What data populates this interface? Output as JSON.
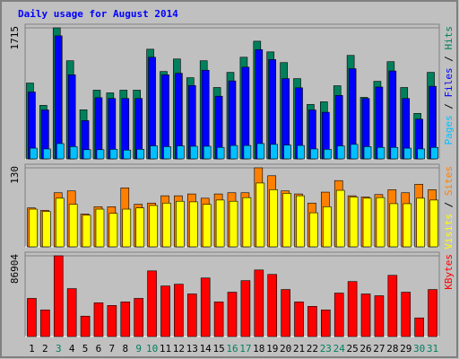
{
  "chart_data": [
    {
      "type": "bar",
      "title": "Daily usage for August 2014",
      "legend_separator": " / ",
      "ylim": [
        0,
        1715
      ],
      "yticks": [
        1715
      ],
      "series": [
        {
          "name": "Hits",
          "color": "#00805c",
          "values": [
            992,
            700,
            1715,
            1284,
            642,
            899,
            864,
            899,
            899,
            1435,
            1143,
            1307,
            1062,
            1284,
            934,
            1132,
            1330,
            1540,
            1400,
            1260,
            1050,
            712,
            747,
            957,
            1354,
            805,
            1015,
            1272,
            934,
            595,
            1132
          ]
        },
        {
          "name": "Files",
          "color": "#0000ff",
          "values": [
            875,
            640,
            1610,
            1100,
            500,
            800,
            790,
            790,
            790,
            1330,
            1100,
            1120,
            960,
            1160,
            820,
            1020,
            1200,
            1430,
            1300,
            1050,
            930,
            640,
            610,
            830,
            1180,
            790,
            940,
            1150,
            790,
            520,
            950
          ]
        },
        {
          "name": "Pages",
          "color": "#00c0ff",
          "values": [
            140,
            130,
            200,
            160,
            120,
            120,
            125,
            115,
            125,
            170,
            160,
            170,
            165,
            165,
            150,
            175,
            175,
            200,
            190,
            180,
            175,
            130,
            125,
            170,
            190,
            160,
            150,
            150,
            140,
            130,
            150
          ]
        }
      ]
    },
    {
      "type": "bar",
      "legend_separator": " / ",
      "ylim": [
        0,
        130
      ],
      "yticks": [
        130
      ],
      "series": [
        {
          "name": "Sites",
          "color": "#ff8000",
          "values": [
            64,
            60,
            89,
            92,
            54,
            66,
            66,
            97,
            70,
            72,
            84,
            84,
            87,
            80,
            87,
            89,
            89,
            130,
            117,
            92,
            87,
            72,
            90,
            109,
            84,
            82,
            86,
            94,
            89,
            103,
            94
          ]
        },
        {
          "name": "Visits",
          "color": "#ffff00",
          "values": [
            62,
            58,
            80,
            70,
            52,
            62,
            55,
            62,
            64,
            68,
            72,
            75,
            74,
            70,
            77,
            75,
            81,
            105,
            94,
            88,
            84,
            56,
            66,
            93,
            82,
            80,
            81,
            71,
            71,
            80,
            77
          ]
        }
      ]
    },
    {
      "type": "bar",
      "ylim": [
        0,
        86904
      ],
      "yticks": [
        86904
      ],
      "categories": [
        "1",
        "2",
        "3",
        "4",
        "5",
        "6",
        "7",
        "8",
        "9",
        "10",
        "11",
        "12",
        "13",
        "14",
        "15",
        "16",
        "17",
        "18",
        "19",
        "20",
        "21",
        "22",
        "23",
        "24",
        "25",
        "26",
        "27",
        "28",
        "29",
        "30",
        "31"
      ],
      "category_colors": [
        "#000000",
        "#000000",
        "#00805c",
        "#000000",
        "#000000",
        "#000000",
        "#000000",
        "#000000",
        "#00805c",
        "#00805c",
        "#000000",
        "#000000",
        "#000000",
        "#000000",
        "#000000",
        "#00805c",
        "#00805c",
        "#000000",
        "#000000",
        "#000000",
        "#000000",
        "#000000",
        "#00805c",
        "#00805c",
        "#000000",
        "#000000",
        "#000000",
        "#000000",
        "#000000",
        "#00805c",
        "#00805c"
      ],
      "series": [
        {
          "name": "KBytes",
          "color": "#ff0000",
          "values": [
            41065,
            28650,
            86904,
            51570,
            21965,
            36290,
            33425,
            37245,
            41065,
            70670,
            54435,
            56345,
            45840,
            63030,
            37245,
            47750,
            60165,
            71625,
            66850,
            50615,
            37245,
            32470,
            28650,
            46795,
            59210,
            45840,
            43930,
            65895,
            47750,
            20055,
            50615
          ]
        }
      ]
    }
  ]
}
